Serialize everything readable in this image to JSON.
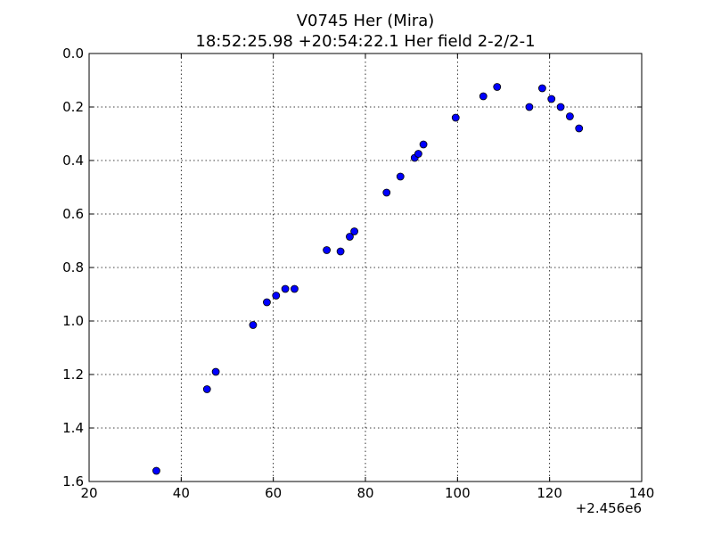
{
  "chart_data": {
    "type": "scatter",
    "title": "V0745 Her (Mira)",
    "subtitle": "18:52:25.98 +20:54:22.1 Her field 2-2/2-1",
    "xlabel": "",
    "ylabel": "",
    "x_offset_label": "+2.456e6",
    "xlim": [
      20,
      140
    ],
    "ylim": [
      1.6,
      0.0
    ],
    "y_inverted": true,
    "grid": true,
    "x_ticks": [
      "20",
      "40",
      "60",
      "80",
      "100",
      "120",
      "140"
    ],
    "y_ticks": [
      "0.0",
      "0.2",
      "0.4",
      "0.6",
      "0.8",
      "1.0",
      "1.2",
      "1.4",
      "1.6"
    ],
    "marker_color": "#0000ff",
    "series": [
      {
        "points": [
          [
            34.6,
            1.56
          ],
          [
            45.6,
            1.255
          ],
          [
            47.5,
            1.19
          ],
          [
            55.6,
            1.015
          ],
          [
            58.6,
            0.93
          ],
          [
            60.6,
            0.905
          ],
          [
            62.6,
            0.88
          ],
          [
            64.6,
            0.88
          ],
          [
            71.6,
            0.735
          ],
          [
            74.6,
            0.74
          ],
          [
            76.6,
            0.685
          ],
          [
            77.6,
            0.665
          ],
          [
            84.6,
            0.52
          ],
          [
            87.6,
            0.46
          ],
          [
            90.7,
            0.39
          ],
          [
            91.5,
            0.375
          ],
          [
            92.6,
            0.34
          ],
          [
            99.6,
            0.24
          ],
          [
            105.6,
            0.16
          ],
          [
            108.6,
            0.125
          ],
          [
            115.6,
            0.2
          ],
          [
            118.4,
            0.13
          ],
          [
            120.4,
            0.17
          ],
          [
            122.4,
            0.2
          ],
          [
            124.4,
            0.235
          ],
          [
            126.4,
            0.28
          ]
        ]
      }
    ]
  }
}
